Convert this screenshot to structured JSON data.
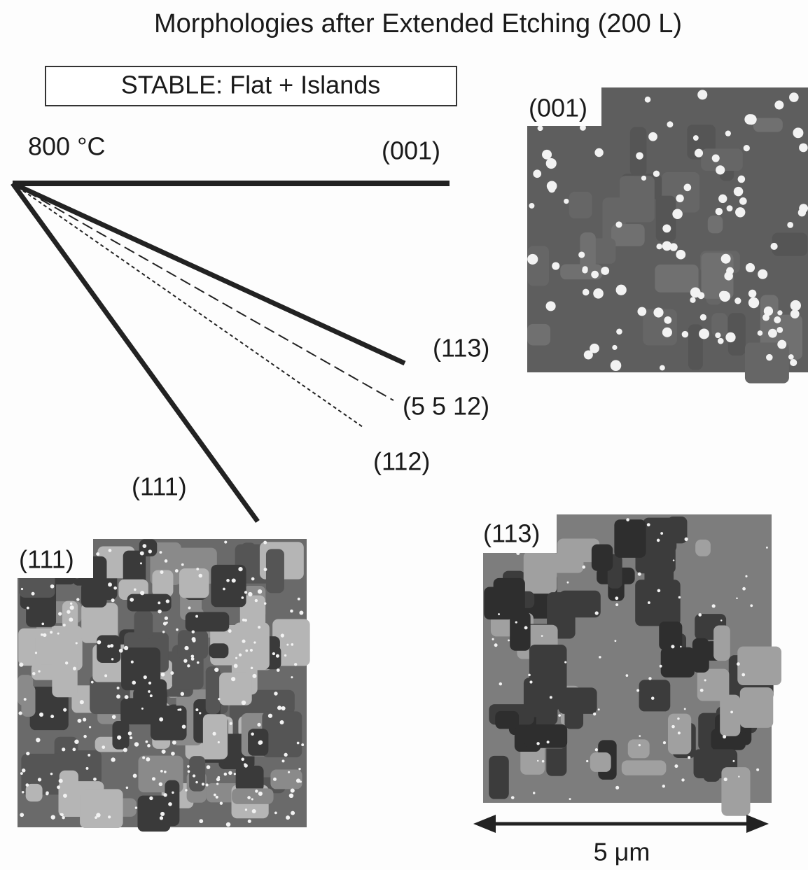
{
  "title": "Morphologies after Extended Etching (200 L)",
  "legend_box": "STABLE:  Flat + Islands",
  "temperature": "800 °C",
  "directions": [
    {
      "label": "(001)"
    },
    {
      "label": "(113)"
    },
    {
      "label": "(5 5 12)"
    },
    {
      "label": "(112)"
    },
    {
      "label": "(111)"
    }
  ],
  "images": [
    {
      "label": "(001)"
    },
    {
      "label": "(111)"
    },
    {
      "label": "(113)"
    }
  ],
  "scale_bar": "5 μm"
}
